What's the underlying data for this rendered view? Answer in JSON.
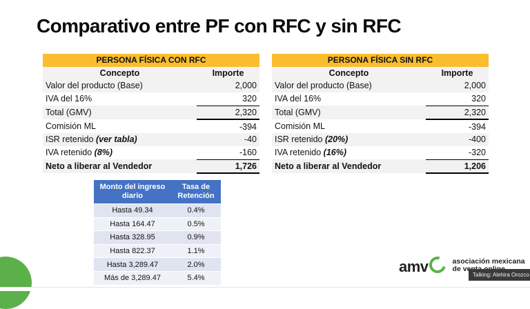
{
  "slide": {
    "title": "Comparativo entre PF con RFC y sin RFC"
  },
  "left_table": {
    "header": "PERSONA FÍSICA CON RFC",
    "col_concept": "Concepto",
    "col_amount": "Importe",
    "rows": [
      {
        "concept": "Valor del producto (Base)",
        "note": "",
        "amount": "2,000"
      },
      {
        "concept": "IVA del 16%",
        "note": "",
        "amount": "320"
      },
      {
        "concept": "Total (GMV)",
        "note": "",
        "amount": "2,320"
      },
      {
        "concept": "Comisión ML",
        "note": "",
        "amount": "-394"
      },
      {
        "concept": "ISR retenido ",
        "note": "(ver tabla)",
        "amount": "-40"
      },
      {
        "concept": "IVA retenido ",
        "note": "(8%)",
        "amount": "-160"
      },
      {
        "concept": "Neto a liberar al Vendedor",
        "note": "",
        "amount": "1,726"
      }
    ]
  },
  "right_table": {
    "header": "PERSONA FÍSICA SIN RFC",
    "col_concept": "Concepto",
    "col_amount": "Importe",
    "rows": [
      {
        "concept": "Valor del producto (Base)",
        "note": "",
        "amount": "2,000"
      },
      {
        "concept": "IVA del 16%",
        "note": "",
        "amount": "320"
      },
      {
        "concept": "Total (GMV)",
        "note": "",
        "amount": "2,320"
      },
      {
        "concept": "Comisión ML",
        "note": "",
        "amount": "-394"
      },
      {
        "concept": "ISR retenido ",
        "note": "(20%)",
        "amount": "-400"
      },
      {
        "concept": "IVA retenido ",
        "note": "(16%)",
        "amount": "-320"
      },
      {
        "concept": "Neto a liberar al Vendedor",
        "note": "",
        "amount": "1,206"
      }
    ]
  },
  "rate_table": {
    "col_income": "Monto del ingreso diario",
    "col_rate": "Tasa de Retención",
    "rows": [
      {
        "income": "Hasta 49.34",
        "rate": "0.4%"
      },
      {
        "income": "Hasta 164.47",
        "rate": "0.5%"
      },
      {
        "income": "Hasta 328.95",
        "rate": "0.9%"
      },
      {
        "income": "Hasta 822.37",
        "rate": "1.1%"
      },
      {
        "income": "Hasta 3,289.47",
        "rate": "2.0%"
      },
      {
        "income": "Más de 3,289.47",
        "rate": "5.4%"
      }
    ]
  },
  "brand": {
    "mark": "amv",
    "name": "asociación mexicana de venta online"
  },
  "caption": {
    "text": "Talking: Alehira Orozco"
  },
  "colors": {
    "header_yellow": "#f9bd2e",
    "rate_header_blue": "#4472c4",
    "brand_green": "#5bb04a"
  }
}
